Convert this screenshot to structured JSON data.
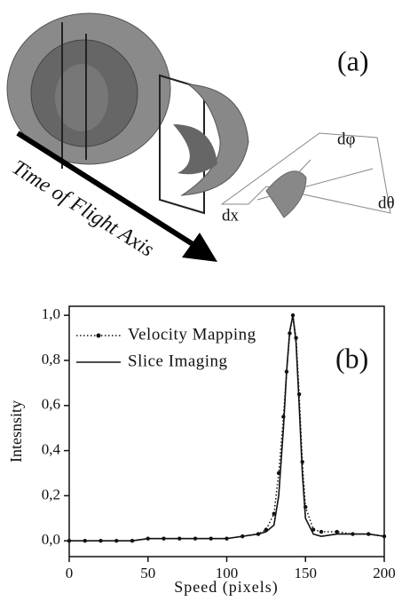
{
  "panel_a": {
    "label": "(a)",
    "axis_label": "Time of Flight Axis",
    "labels": [
      "dφ",
      "dθ",
      "dx"
    ]
  },
  "chart_data": {
    "type": "line",
    "panel_label": "(b)",
    "xlabel": "Speed (pixels)",
    "ylabel": "Intesnsity",
    "x": [
      0,
      10,
      20,
      30,
      40,
      50,
      60,
      70,
      80,
      90,
      100,
      110,
      120,
      125,
      130,
      133,
      136,
      138,
      140,
      142,
      144,
      146,
      148,
      150,
      155,
      160,
      170,
      180,
      190,
      200
    ],
    "series": [
      {
        "name": "Velocity Mapping",
        "color": "#111111",
        "dash": "dotted",
        "marker": true,
        "values": [
          0.0,
          0.0,
          0.0,
          0.0,
          0.0,
          0.01,
          0.01,
          0.01,
          0.01,
          0.01,
          0.01,
          0.02,
          0.03,
          0.05,
          0.12,
          0.3,
          0.55,
          0.75,
          0.92,
          1.0,
          0.9,
          0.65,
          0.35,
          0.15,
          0.05,
          0.04,
          0.04,
          0.03,
          0.03,
          0.02
        ]
      },
      {
        "name": "Slice Imaging",
        "color": "#111111",
        "dash": "solid",
        "marker": false,
        "values": [
          0.0,
          0.0,
          0.0,
          0.0,
          0.0,
          0.01,
          0.01,
          0.01,
          0.01,
          0.01,
          0.01,
          0.02,
          0.03,
          0.04,
          0.07,
          0.2,
          0.5,
          0.75,
          0.93,
          1.0,
          0.88,
          0.6,
          0.3,
          0.1,
          0.03,
          0.02,
          0.03,
          0.03,
          0.03,
          0.02
        ]
      }
    ],
    "xlim": [
      0,
      200
    ],
    "xticks": [
      0,
      50,
      100,
      150,
      200
    ],
    "ylim": [
      -0.07,
      1.04
    ],
    "yticks": [
      {
        "value": 0,
        "label": "0,0"
      },
      {
        "value": 0.2,
        "label": "0,2"
      },
      {
        "value": 0.4,
        "label": "0,4"
      },
      {
        "value": 0.6,
        "label": "0,6"
      },
      {
        "value": 0.8,
        "label": "0,8"
      },
      {
        "value": 1.0,
        "label": "1,0"
      }
    ],
    "legend": "upper left",
    "grid": false
  }
}
